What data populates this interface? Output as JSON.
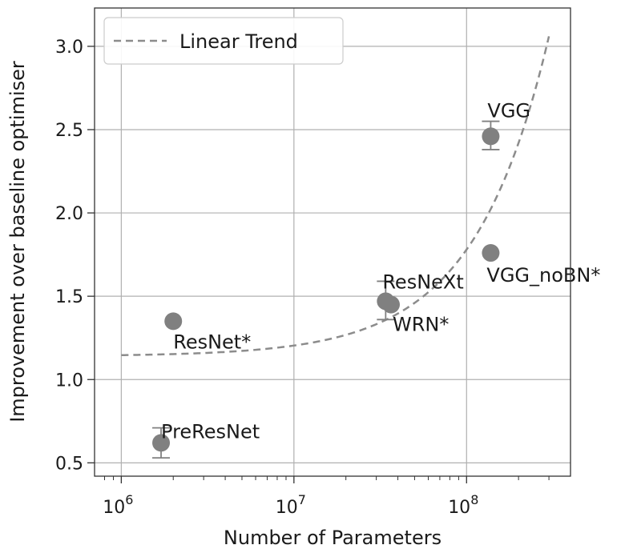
{
  "chart_data": {
    "type": "scatter",
    "xscale": "log",
    "xlim": [
      700000,
      400000000
    ],
    "ylim": [
      0.42,
      3.23
    ],
    "xlabel": "Number of Parameters",
    "ylabel": "Improvement over baseline optimiser",
    "grid": true,
    "x_ticks": [
      {
        "value": 1000000,
        "base": "10",
        "exp": "6"
      },
      {
        "value": 10000000,
        "base": "10",
        "exp": "7"
      },
      {
        "value": 100000000,
        "base": "10",
        "exp": "8"
      }
    ],
    "y_ticks": [
      0.5,
      1.0,
      1.5,
      2.0,
      2.5,
      3.0
    ],
    "y_tick_labels": [
      "0.5",
      "1.0",
      "1.5",
      "2.0",
      "2.5",
      "3.0"
    ],
    "points": [
      {
        "label": "PreResNet",
        "x": 1700000,
        "y": 0.62,
        "err_low": 0.53,
        "err_high": 0.71
      },
      {
        "label": "ResNet*",
        "x": 2000000,
        "y": 1.35
      },
      {
        "label": "ResNeXt",
        "x": 34000000,
        "y": 1.47,
        "err_low": 1.36,
        "err_high": 1.59
      },
      {
        "label": "WRN*",
        "x": 36500000,
        "y": 1.45
      },
      {
        "label": "VGG",
        "x": 138000000,
        "y": 2.46,
        "err_low": 2.38,
        "err_high": 2.55
      },
      {
        "label": "VGG_noBN*",
        "x": 138000000,
        "y": 1.76
      }
    ],
    "trend": {
      "name": "Linear Trend",
      "intercept": 1.14,
      "slope": 6.4e-09,
      "x_range": [
        1000000,
        300000000
      ]
    },
    "legend": {
      "position": "top-left",
      "entries": [
        "Linear Trend"
      ]
    },
    "colors": {
      "points": "#808080",
      "trend": "#8c8c8c",
      "grid": "#b0b0b0"
    }
  }
}
